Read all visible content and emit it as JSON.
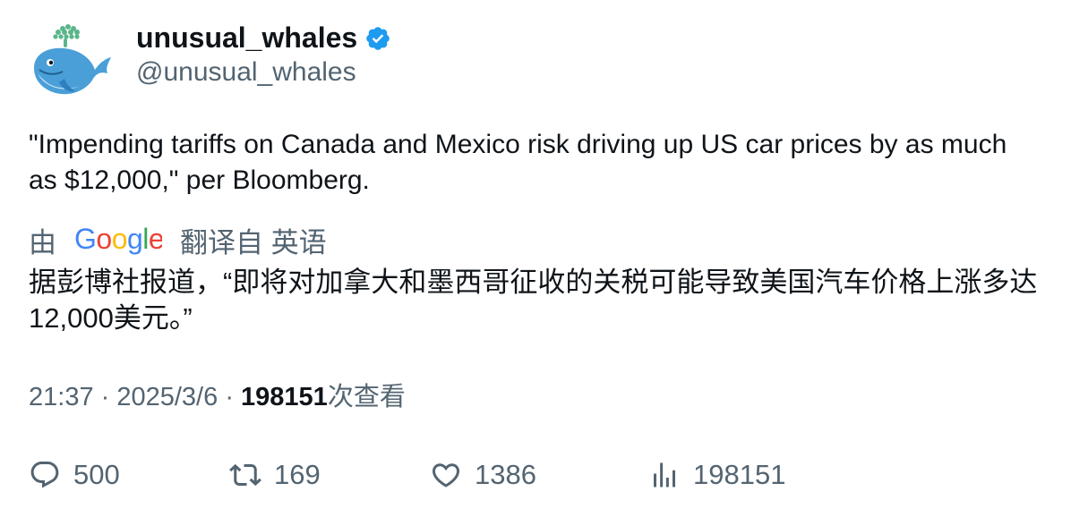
{
  "author": {
    "display_name": "unusual_whales",
    "handle": "@unusual_whales",
    "verified": true,
    "verified_color": "#1d9bf0",
    "avatar_icon": "whale-icon"
  },
  "tweet": {
    "text": "\"Impending tariffs on Canada and Mexico risk driving up US car prices by as much as $12,000,\" per Bloomberg."
  },
  "translation": {
    "by_label": "由",
    "provider": "Google",
    "translated_from_label": "翻译自 英语",
    "text": "据彭博社报道，“即将对加拿大和墨西哥征收的关税可能导致美国汽车价格上涨多达12,000美元。”"
  },
  "meta": {
    "time": "21:37",
    "separator": "·",
    "date": "2025/3/6",
    "views_count": "198151",
    "views_label": "次查看"
  },
  "actions": {
    "replies": "500",
    "retweets": "169",
    "likes": "1386",
    "views": "198151"
  },
  "colors": {
    "text_primary": "#0f1419",
    "text_secondary": "#536471",
    "whale_blue": "#4a9fd8",
    "spout_green": "#5ab68a"
  }
}
